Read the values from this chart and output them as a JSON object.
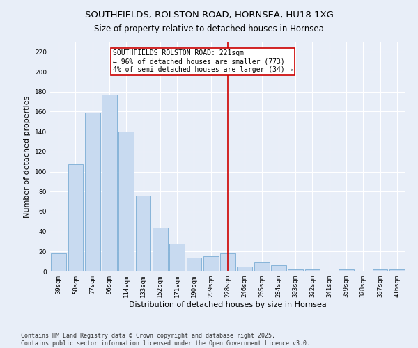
{
  "title": "SOUTHFIELDS, ROLSTON ROAD, HORNSEA, HU18 1XG",
  "subtitle": "Size of property relative to detached houses in Hornsea",
  "xlabel": "Distribution of detached houses by size in Hornsea",
  "ylabel": "Number of detached properties",
  "categories": [
    "39sqm",
    "58sqm",
    "77sqm",
    "96sqm",
    "114sqm",
    "133sqm",
    "152sqm",
    "171sqm",
    "190sqm",
    "209sqm",
    "228sqm",
    "246sqm",
    "265sqm",
    "284sqm",
    "303sqm",
    "322sqm",
    "341sqm",
    "359sqm",
    "378sqm",
    "397sqm",
    "416sqm"
  ],
  "values": [
    18,
    107,
    159,
    177,
    140,
    76,
    44,
    28,
    14,
    15,
    18,
    5,
    9,
    6,
    2,
    2,
    0,
    2,
    0,
    2,
    2
  ],
  "bar_color": "#c8daf0",
  "bar_edge_color": "#7aadd4",
  "vline_x": 10,
  "vline_color": "#cc0000",
  "annotation_text": "SOUTHFIELDS ROLSTON ROAD: 221sqm\n← 96% of detached houses are smaller (773)\n4% of semi-detached houses are larger (34) →",
  "annotation_box_color": "#cc0000",
  "ylim": [
    0,
    230
  ],
  "yticks": [
    0,
    20,
    40,
    60,
    80,
    100,
    120,
    140,
    160,
    180,
    200,
    220
  ],
  "footnote": "Contains HM Land Registry data © Crown copyright and database right 2025.\nContains public sector information licensed under the Open Government Licence v3.0.",
  "bg_color": "#e8eef8",
  "plot_bg_color": "#e8eef8",
  "title_fontsize": 9.5,
  "subtitle_fontsize": 8.5,
  "tick_fontsize": 6.5,
  "ylabel_fontsize": 8,
  "xlabel_fontsize": 8,
  "annotation_fontsize": 7,
  "footnote_fontsize": 6
}
